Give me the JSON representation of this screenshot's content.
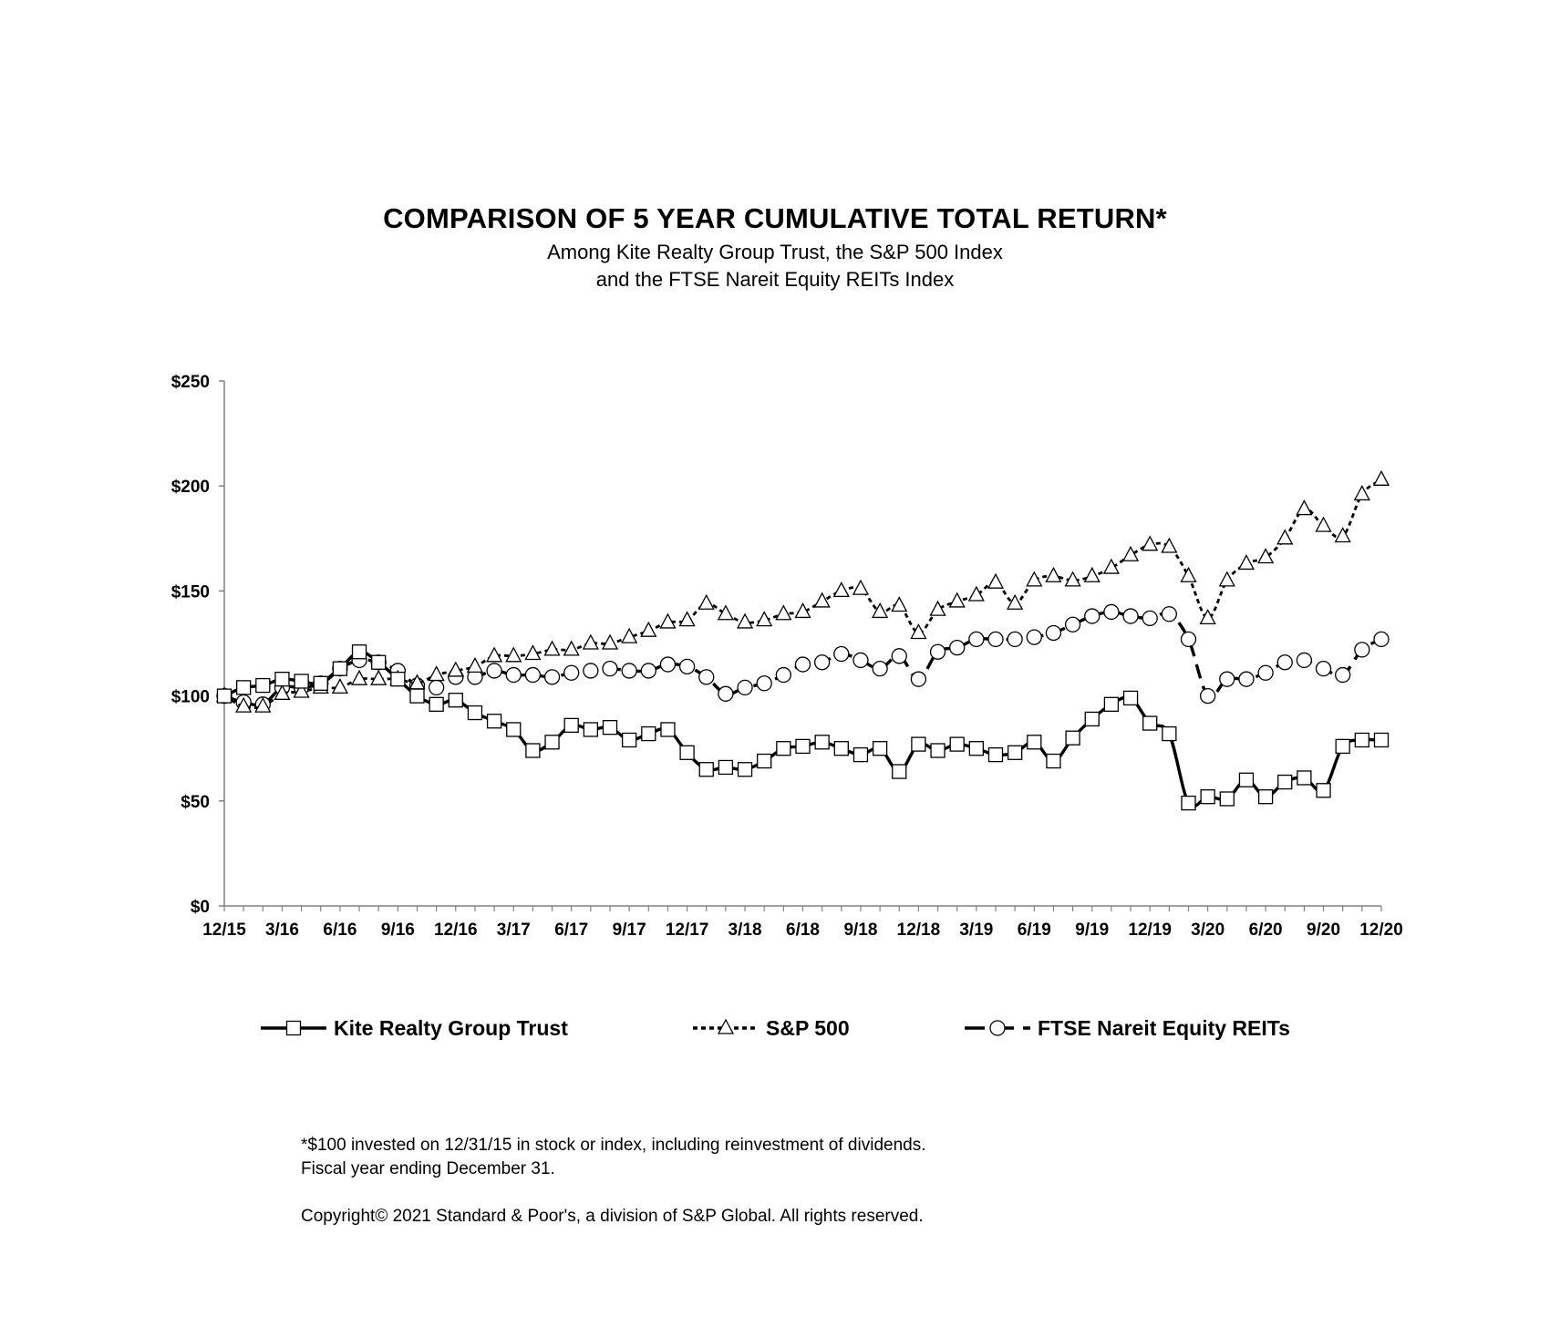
{
  "chart_data": {
    "type": "line",
    "title": "COMPARISON OF 5 YEAR CUMULATIVE TOTAL RETURN*",
    "subtitle_lines": [
      "Among Kite Realty Group Trust, the S&P 500 Index",
      "and the FTSE Nareit Equity REITs Index"
    ],
    "xlabel": "",
    "ylabel": "",
    "ylim": [
      0,
      250
    ],
    "yticks": [
      0,
      50,
      100,
      150,
      200,
      250
    ],
    "ytick_labels": [
      "$0",
      "$50",
      "$100",
      "$150",
      "$200",
      "$250"
    ],
    "xtick_labels": [
      "12/15",
      "3/16",
      "6/16",
      "9/16",
      "12/16",
      "3/17",
      "6/17",
      "9/17",
      "12/17",
      "3/18",
      "6/18",
      "9/18",
      "12/18",
      "3/19",
      "6/19",
      "9/19",
      "12/19",
      "3/20",
      "6/20",
      "9/20",
      "12/20"
    ],
    "x": [
      "12/15",
      "1/16",
      "2/16",
      "3/16",
      "4/16",
      "5/16",
      "6/16",
      "7/16",
      "8/16",
      "9/16",
      "10/16",
      "11/16",
      "12/16",
      "1/17",
      "2/17",
      "3/17",
      "4/17",
      "5/17",
      "6/17",
      "7/17",
      "8/17",
      "9/17",
      "10/17",
      "11/17",
      "12/17",
      "1/18",
      "2/18",
      "3/18",
      "4/18",
      "5/18",
      "6/18",
      "7/18",
      "8/18",
      "9/18",
      "10/18",
      "11/18",
      "12/18",
      "1/19",
      "2/19",
      "3/19",
      "4/19",
      "5/19",
      "6/19",
      "7/19",
      "8/19",
      "9/19",
      "10/19",
      "11/19",
      "12/19",
      "1/20",
      "2/20",
      "3/20",
      "4/20",
      "5/20",
      "6/20",
      "7/20",
      "8/20",
      "9/20",
      "10/20",
      "11/20",
      "12/20"
    ],
    "grid": false,
    "legend_position": "bottom",
    "series": [
      {
        "name": "Kite Realty Group Trust",
        "line_style": "solid",
        "marker": "square",
        "values": [
          100,
          104,
          105,
          108,
          107,
          106,
          113,
          121,
          116,
          108,
          100,
          96,
          98,
          92,
          88,
          84,
          74,
          78,
          86,
          84,
          85,
          79,
          82,
          84,
          73,
          65,
          66,
          65,
          69,
          75,
          76,
          78,
          75,
          72,
          75,
          64,
          77,
          74,
          77,
          75,
          72,
          73,
          78,
          69,
          80,
          89,
          96,
          99,
          87,
          82,
          49,
          52,
          51,
          60,
          52,
          59,
          61,
          55,
          76,
          79,
          79
        ]
      },
      {
        "name": "S&P 500",
        "line_style": "short-dash",
        "marker": "triangle",
        "values": [
          100,
          95,
          95,
          101,
          102,
          104,
          104,
          108,
          108,
          108,
          106,
          110,
          112,
          114,
          119,
          119,
          120,
          122,
          122,
          125,
          125,
          128,
          131,
          135,
          136,
          144,
          139,
          135,
          136,
          139,
          140,
          145,
          150,
          151,
          140,
          143,
          130,
          141,
          145,
          148,
          154,
          144,
          155,
          157,
          155,
          157,
          161,
          167,
          172,
          171,
          157,
          137,
          155,
          163,
          166,
          175,
          189,
          181,
          176,
          196,
          203
        ]
      },
      {
        "name": "FTSE Nareit Equity REITs",
        "line_style": "long-dash",
        "marker": "circle",
        "values": [
          100,
          97,
          96,
          104,
          104,
          106,
          113,
          117,
          116,
          112,
          105,
          104,
          109,
          109,
          112,
          110,
          110,
          109,
          111,
          112,
          113,
          112,
          112,
          115,
          114,
          109,
          101,
          104,
          106,
          110,
          115,
          116,
          120,
          117,
          113,
          119,
          108,
          121,
          123,
          127,
          127,
          127,
          128,
          130,
          134,
          138,
          140,
          138,
          137,
          139,
          127,
          100,
          108,
          108,
          111,
          116,
          117,
          113,
          110,
          122,
          127
        ]
      }
    ]
  },
  "footnotes": {
    "line1": "*$100 invested on 12/31/15 in stock or index, including reinvestment of dividends.",
    "line2": "Fiscal year ending December 31.",
    "copyright": "Copyright© 2021 Standard & Poor's, a division of S&P Global. All rights reserved."
  },
  "colors": {
    "line": "#000000",
    "marker_fill": "#ffffff",
    "background": "#ffffff"
  }
}
